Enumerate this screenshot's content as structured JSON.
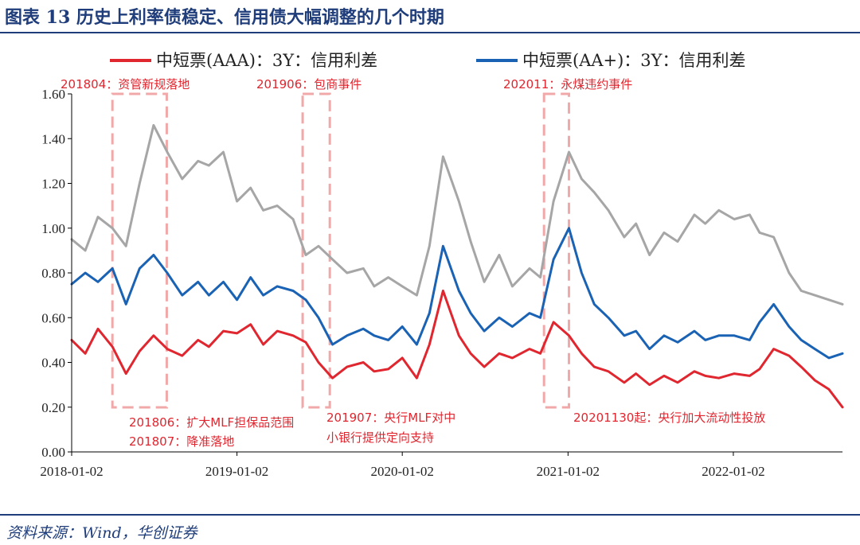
{
  "figure": {
    "title": "图表 13  历史上利率债稳定、信用债大幅调整的几个时期",
    "source": "资料来源：Wind，华创证券"
  },
  "chart_data": {
    "type": "line",
    "x_start": "2018-01-02",
    "x_end": "2022-08-31",
    "x_ticks": [
      "2018-01-02",
      "2019-01-02",
      "2020-01-02",
      "2021-01-02",
      "2022-01-02"
    ],
    "ylim": [
      0,
      1.6
    ],
    "y_ticks": [
      "0.00",
      "0.20",
      "0.40",
      "0.60",
      "0.80",
      "1.00",
      "1.20",
      "1.40",
      "1.60"
    ],
    "legend_position": "top",
    "colors": {
      "aaa": "#e0262f",
      "aa_plus": "#1a62b4",
      "gray": "#a6a6a6",
      "box": "#f0a8a8"
    },
    "series": [
      {
        "name": "中短票(AAA)：3Y：信用利差",
        "color": "#e0262f",
        "points": [
          [
            "2018-01-02",
            0.5
          ],
          [
            "2018-02-01",
            0.44
          ],
          [
            "2018-03-01",
            0.55
          ],
          [
            "2018-04-02",
            0.47
          ],
          [
            "2018-05-02",
            0.35
          ],
          [
            "2018-06-01",
            0.45
          ],
          [
            "2018-07-02",
            0.52
          ],
          [
            "2018-08-01",
            0.46
          ],
          [
            "2018-09-03",
            0.43
          ],
          [
            "2018-10-08",
            0.5
          ],
          [
            "2018-11-01",
            0.47
          ],
          [
            "2018-12-03",
            0.54
          ],
          [
            "2019-01-02",
            0.53
          ],
          [
            "2019-02-01",
            0.57
          ],
          [
            "2019-03-01",
            0.48
          ],
          [
            "2019-04-01",
            0.54
          ],
          [
            "2019-05-06",
            0.52
          ],
          [
            "2019-06-03",
            0.49
          ],
          [
            "2019-07-01",
            0.4
          ],
          [
            "2019-08-01",
            0.33
          ],
          [
            "2019-09-02",
            0.38
          ],
          [
            "2019-10-08",
            0.4
          ],
          [
            "2019-11-01",
            0.36
          ],
          [
            "2019-12-02",
            0.37
          ],
          [
            "2020-01-02",
            0.42
          ],
          [
            "2020-02-03",
            0.33
          ],
          [
            "2020-03-02",
            0.48
          ],
          [
            "2020-04-01",
            0.72
          ],
          [
            "2020-05-06",
            0.52
          ],
          [
            "2020-06-01",
            0.44
          ],
          [
            "2020-07-01",
            0.38
          ],
          [
            "2020-08-03",
            0.44
          ],
          [
            "2020-09-01",
            0.42
          ],
          [
            "2020-10-09",
            0.46
          ],
          [
            "2020-11-02",
            0.44
          ],
          [
            "2020-12-01",
            0.58
          ],
          [
            "2021-01-04",
            0.52
          ],
          [
            "2021-02-01",
            0.44
          ],
          [
            "2021-03-01",
            0.38
          ],
          [
            "2021-04-01",
            0.36
          ],
          [
            "2021-05-06",
            0.31
          ],
          [
            "2021-06-01",
            0.35
          ],
          [
            "2021-07-01",
            0.3
          ],
          [
            "2021-08-02",
            0.34
          ],
          [
            "2021-09-01",
            0.31
          ],
          [
            "2021-10-08",
            0.36
          ],
          [
            "2021-11-01",
            0.34
          ],
          [
            "2021-12-01",
            0.33
          ],
          [
            "2022-01-04",
            0.35
          ],
          [
            "2022-02-07",
            0.34
          ],
          [
            "2022-03-01",
            0.37
          ],
          [
            "2022-04-01",
            0.46
          ],
          [
            "2022-05-05",
            0.43
          ],
          [
            "2022-06-01",
            0.38
          ],
          [
            "2022-07-01",
            0.32
          ],
          [
            "2022-08-01",
            0.28
          ],
          [
            "2022-08-31",
            0.2
          ]
        ]
      },
      {
        "name": "中短票(AA+)：3Y：信用利差",
        "color": "#1a62b4",
        "points": [
          [
            "2018-01-02",
            0.75
          ],
          [
            "2018-02-01",
            0.8
          ],
          [
            "2018-03-01",
            0.76
          ],
          [
            "2018-04-02",
            0.82
          ],
          [
            "2018-05-02",
            0.66
          ],
          [
            "2018-06-01",
            0.82
          ],
          [
            "2018-07-02",
            0.88
          ],
          [
            "2018-08-01",
            0.8
          ],
          [
            "2018-09-03",
            0.7
          ],
          [
            "2018-10-08",
            0.76
          ],
          [
            "2018-11-01",
            0.7
          ],
          [
            "2018-12-03",
            0.76
          ],
          [
            "2019-01-02",
            0.68
          ],
          [
            "2019-02-01",
            0.78
          ],
          [
            "2019-03-01",
            0.7
          ],
          [
            "2019-04-01",
            0.74
          ],
          [
            "2019-05-06",
            0.72
          ],
          [
            "2019-06-03",
            0.68
          ],
          [
            "2019-07-01",
            0.6
          ],
          [
            "2019-08-01",
            0.48
          ],
          [
            "2019-09-02",
            0.52
          ],
          [
            "2019-10-08",
            0.55
          ],
          [
            "2019-11-01",
            0.52
          ],
          [
            "2019-12-02",
            0.5
          ],
          [
            "2020-01-02",
            0.56
          ],
          [
            "2020-02-03",
            0.48
          ],
          [
            "2020-03-02",
            0.62
          ],
          [
            "2020-04-01",
            0.92
          ],
          [
            "2020-05-06",
            0.72
          ],
          [
            "2020-06-01",
            0.62
          ],
          [
            "2020-07-01",
            0.54
          ],
          [
            "2020-08-03",
            0.6
          ],
          [
            "2020-09-01",
            0.56
          ],
          [
            "2020-10-09",
            0.62
          ],
          [
            "2020-11-02",
            0.6
          ],
          [
            "2020-12-01",
            0.86
          ],
          [
            "2021-01-04",
            1.0
          ],
          [
            "2021-02-01",
            0.8
          ],
          [
            "2021-03-01",
            0.66
          ],
          [
            "2021-04-01",
            0.6
          ],
          [
            "2021-05-06",
            0.52
          ],
          [
            "2021-06-01",
            0.54
          ],
          [
            "2021-07-01",
            0.46
          ],
          [
            "2021-08-02",
            0.52
          ],
          [
            "2021-09-01",
            0.49
          ],
          [
            "2021-10-08",
            0.54
          ],
          [
            "2021-11-01",
            0.5
          ],
          [
            "2021-12-01",
            0.52
          ],
          [
            "2022-01-04",
            0.52
          ],
          [
            "2022-02-07",
            0.5
          ],
          [
            "2022-03-01",
            0.58
          ],
          [
            "2022-04-01",
            0.66
          ],
          [
            "2022-05-05",
            0.56
          ],
          [
            "2022-06-01",
            0.5
          ],
          [
            "2022-07-01",
            0.46
          ],
          [
            "2022-08-01",
            0.42
          ],
          [
            "2022-08-31",
            0.44
          ]
        ]
      },
      {
        "color": "#a6a6a6",
        "points": [
          [
            "2018-01-02",
            0.95
          ],
          [
            "2018-02-01",
            0.9
          ],
          [
            "2018-03-01",
            1.05
          ],
          [
            "2018-04-02",
            1.0
          ],
          [
            "2018-05-02",
            0.92
          ],
          [
            "2018-06-01",
            1.2
          ],
          [
            "2018-07-02",
            1.46
          ],
          [
            "2018-08-01",
            1.34
          ],
          [
            "2018-09-03",
            1.22
          ],
          [
            "2018-10-08",
            1.3
          ],
          [
            "2018-11-01",
            1.28
          ],
          [
            "2018-12-03",
            1.34
          ],
          [
            "2019-01-02",
            1.12
          ],
          [
            "2019-02-01",
            1.18
          ],
          [
            "2019-03-01",
            1.08
          ],
          [
            "2019-04-01",
            1.1
          ],
          [
            "2019-05-06",
            1.04
          ],
          [
            "2019-06-03",
            0.88
          ],
          [
            "2019-07-01",
            0.92
          ],
          [
            "2019-08-01",
            0.86
          ],
          [
            "2019-09-02",
            0.8
          ],
          [
            "2019-10-08",
            0.82
          ],
          [
            "2019-11-01",
            0.74
          ],
          [
            "2019-12-02",
            0.78
          ],
          [
            "2020-01-02",
            0.74
          ],
          [
            "2020-02-03",
            0.7
          ],
          [
            "2020-03-02",
            0.92
          ],
          [
            "2020-04-01",
            1.32
          ],
          [
            "2020-05-06",
            1.12
          ],
          [
            "2020-06-01",
            0.94
          ],
          [
            "2020-07-01",
            0.76
          ],
          [
            "2020-08-03",
            0.88
          ],
          [
            "2020-09-01",
            0.74
          ],
          [
            "2020-10-09",
            0.82
          ],
          [
            "2020-11-02",
            0.78
          ],
          [
            "2020-12-01",
            1.12
          ],
          [
            "2021-01-04",
            1.34
          ],
          [
            "2021-02-01",
            1.22
          ],
          [
            "2021-03-01",
            1.16
          ],
          [
            "2021-04-01",
            1.08
          ],
          [
            "2021-05-06",
            0.96
          ],
          [
            "2021-06-01",
            1.02
          ],
          [
            "2021-07-01",
            0.88
          ],
          [
            "2021-08-02",
            0.98
          ],
          [
            "2021-09-01",
            0.94
          ],
          [
            "2021-10-08",
            1.06
          ],
          [
            "2021-11-01",
            1.02
          ],
          [
            "2021-12-01",
            1.08
          ],
          [
            "2022-01-04",
            1.04
          ],
          [
            "2022-02-07",
            1.06
          ],
          [
            "2022-03-01",
            0.98
          ],
          [
            "2022-04-01",
            0.96
          ],
          [
            "2022-05-05",
            0.8
          ],
          [
            "2022-06-01",
            0.72
          ],
          [
            "2022-07-01",
            0.7
          ],
          [
            "2022-08-01",
            0.68
          ],
          [
            "2022-08-31",
            0.66
          ]
        ]
      }
    ],
    "shaded_periods": [
      {
        "start": "2018-04-02",
        "end": "2018-07-31"
      },
      {
        "start": "2019-05-27",
        "end": "2019-07-26"
      },
      {
        "start": "2020-11-10",
        "end": "2021-01-04"
      }
    ],
    "annotations": [
      {
        "id": "201804",
        "text": "201804：资管新规落地",
        "position": "top"
      },
      {
        "id": "201906",
        "text": "201906：包商事件",
        "position": "top"
      },
      {
        "id": "202011",
        "text": "202011：永煤违约事件",
        "position": "top"
      },
      {
        "id": "201806",
        "text": "201806：扩大MLF担保品范围",
        "position": "bottom"
      },
      {
        "id": "201807",
        "text": "201807：降准落地",
        "position": "bottom"
      },
      {
        "id": "201907a",
        "text": "201907：央行MLF对中",
        "position": "bottom"
      },
      {
        "id": "201907b",
        "text": "小银行提供定向支持",
        "position": "bottom"
      },
      {
        "id": "20201130",
        "text": "20201130起：央行加大流动性投放",
        "position": "bottom"
      }
    ]
  }
}
